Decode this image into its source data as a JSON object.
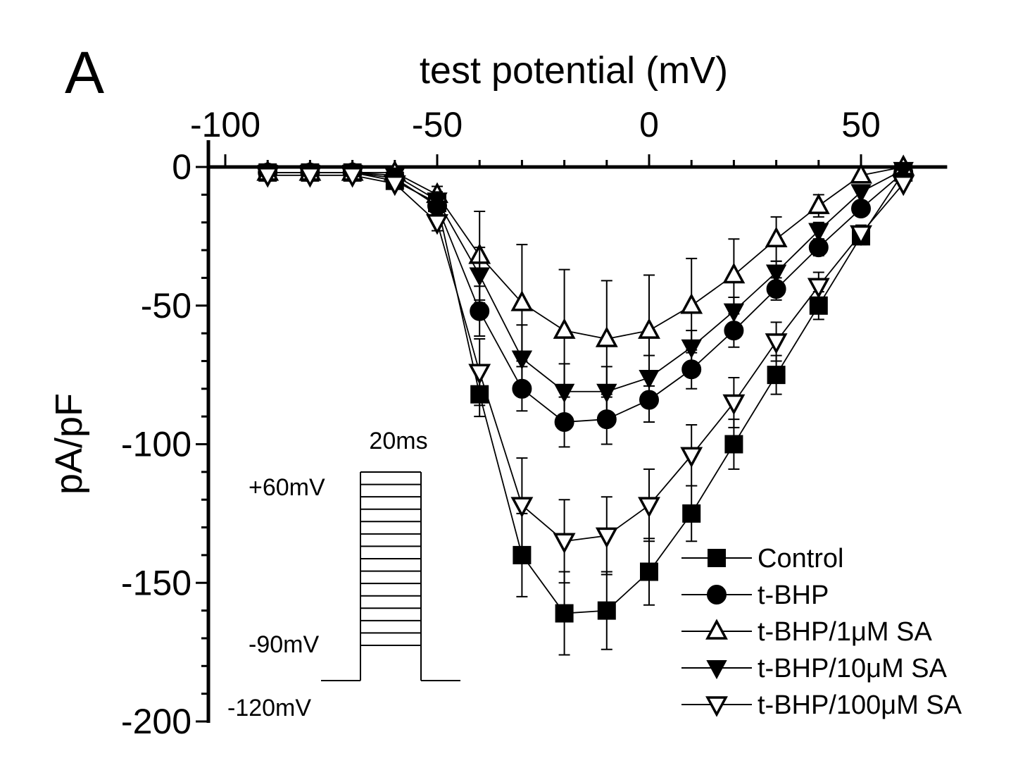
{
  "panel_label": "A",
  "chart_data": {
    "type": "line",
    "title": "",
    "xlabel": "test potential (mV)",
    "ylabel": "pA/pF",
    "xlim": [
      -100,
      70
    ],
    "ylim": [
      -200,
      0
    ],
    "x_ticks": [
      {
        "value": -100,
        "label": "-100"
      },
      {
        "value": -50,
        "label": "-50"
      },
      {
        "value": 0,
        "label": "0"
      },
      {
        "value": 50,
        "label": "50"
      }
    ],
    "y_ticks": [
      {
        "value": 0,
        "label": "0"
      },
      {
        "value": -50,
        "label": "-50"
      },
      {
        "value": -100,
        "label": "-100"
      },
      {
        "value": -150,
        "label": "-150"
      },
      {
        "value": -200,
        "label": "-200"
      }
    ],
    "x": [
      -90,
      -80,
      -70,
      -60,
      -50,
      -40,
      -30,
      -20,
      -10,
      0,
      10,
      20,
      30,
      40,
      50,
      60
    ],
    "legend_position": "bottom-right",
    "series": [
      {
        "name": "Control",
        "marker": "square",
        "filled": true,
        "values": [
          -2,
          -2,
          -2,
          -5,
          -13,
          -82,
          -140,
          -161,
          -160,
          -146,
          -125,
          -100,
          -75,
          -50,
          -25,
          -2
        ],
        "error": [
          2,
          2,
          2,
          3,
          4,
          8,
          15,
          15,
          14,
          12,
          10,
          9,
          7,
          5,
          3,
          2
        ]
      },
      {
        "name": "t-BHP",
        "marker": "circle",
        "filled": true,
        "values": [
          -2,
          -2,
          -2,
          -4,
          -14,
          -52,
          -80,
          -92,
          -91,
          -84,
          -73,
          -59,
          -44,
          -29,
          -15,
          -2
        ],
        "error": [
          2,
          2,
          2,
          2,
          3,
          9,
          8,
          9,
          9,
          8,
          7,
          6,
          4,
          3,
          2,
          2
        ]
      },
      {
        "name": "t-BHP/1μM SA",
        "marker": "triangle-up",
        "filled": false,
        "values": [
          -2,
          -2,
          -2,
          -2,
          -10,
          -32,
          -49,
          -59,
          -62,
          -59,
          -50,
          -39,
          -26,
          -14,
          -3,
          0
        ],
        "error": [
          2,
          2,
          2,
          2,
          3,
          16,
          21,
          22,
          21,
          20,
          17,
          13,
          8,
          4,
          2,
          2
        ]
      },
      {
        "name": "t-BHP/10μM SA",
        "marker": "triangle-down",
        "filled": true,
        "values": [
          -2,
          -2,
          -2,
          -3,
          -12,
          -39,
          -69,
          -81,
          -81,
          -76,
          -65,
          -52,
          -38,
          -23,
          -9,
          -1
        ],
        "error": [
          2,
          2,
          2,
          2,
          3,
          10,
          12,
          10,
          9,
          8,
          6,
          5,
          4,
          3,
          2,
          2
        ]
      },
      {
        "name": "t-BHP/100μM SA",
        "marker": "triangle-down",
        "filled": false,
        "values": [
          -3,
          -3,
          -3,
          -6,
          -20,
          -74,
          -122,
          -135,
          -133,
          -122,
          -104,
          -85,
          -63,
          -43,
          -24,
          -6
        ],
        "error": [
          2,
          2,
          2,
          2,
          3,
          12,
          17,
          15,
          14,
          13,
          11,
          9,
          7,
          5,
          3,
          2
        ]
      }
    ],
    "inset": {
      "duration_label": "20ms",
      "top_label": "+60mV",
      "start_label": "-90mV",
      "holding_label": "-120mV"
    }
  }
}
